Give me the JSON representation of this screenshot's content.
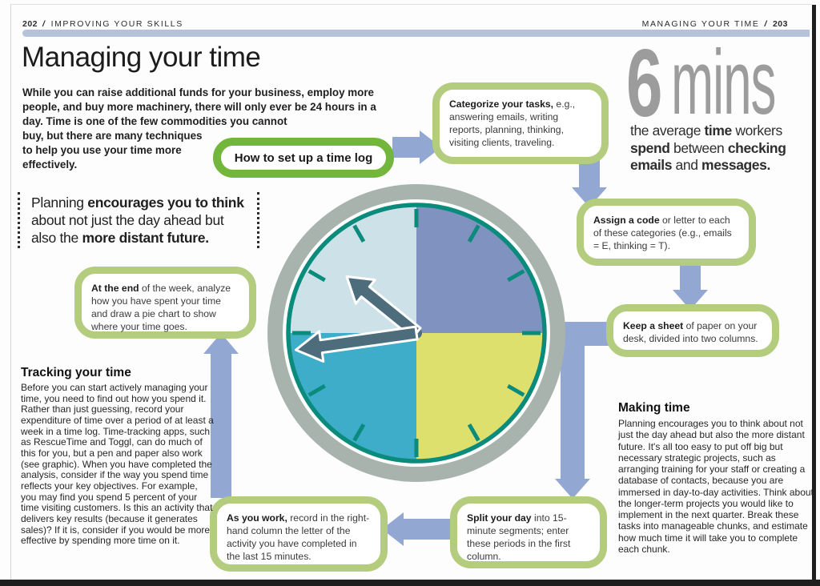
{
  "colors": {
    "accent_bar_blue": "#b5c3da",
    "arrow_blue": "#92a7d2",
    "start_box_green": "#72b73c",
    "callout_box_green": "#b3cc7d",
    "stat_gray": "#9c9c9c"
  },
  "header": {
    "left": {
      "page_num": "202",
      "divider": "/",
      "section": "IMPROVING YOUR SKILLS"
    },
    "right": {
      "section": "MANAGING YOUR TIME",
      "divider": "/",
      "page_num": "203"
    }
  },
  "title": "Managing your time",
  "intro": {
    "wide": "While you can raise additional funds for your business, employ more people, and buy more machinery, there will only ever be 24 hours in a day. Time is one of the few commodities you cannot",
    "narrow": "buy, but there are many techniques to help you use your time more effectively."
  },
  "stat": {
    "value": "6",
    "unit": "mins",
    "caption": [
      {
        "t": "the average "
      },
      {
        "t": "time",
        "b": true
      },
      {
        "t": " workers "
      },
      {
        "t": "spend",
        "b": true
      },
      {
        "t": " between "
      },
      {
        "t": "checking emails",
        "b": true
      },
      {
        "t": " and "
      },
      {
        "t": "messages.",
        "b": true
      }
    ]
  },
  "quote": [
    {
      "t": "Planning "
    },
    {
      "t": "encourages you to think",
      "b": true
    },
    {
      "t": " about not just the day ahead but also the "
    },
    {
      "t": "more distant future.",
      "b": true
    }
  ],
  "flow": {
    "start": "How to set up a time log",
    "steps": {
      "categorize": [
        {
          "t": "Categorize your tasks,",
          "b": true
        },
        {
          "t": " e.g., answering emails, writing reports, planning, thinking, visiting clients, traveling."
        }
      ],
      "assign": [
        {
          "t": "Assign a code",
          "b": true
        },
        {
          "t": " or letter to each of these categories (e.g., emails = E, thinking = T)."
        }
      ],
      "keep": [
        {
          "t": "Keep a sheet",
          "b": true
        },
        {
          "t": " of paper on your desk, divided into two columns."
        }
      ],
      "split": [
        {
          "t": "Split your day",
          "b": true
        },
        {
          "t": " into 15-minute segments; enter these periods in the first column."
        }
      ],
      "as_you_work": [
        {
          "t": "As you work,",
          "b": true
        },
        {
          "t": " record in the right-hand column the letter of the activity you have completed in the last 15 minutes."
        }
      ],
      "week_end": [
        {
          "t": "At the end",
          "b": true
        },
        {
          "t": " of the week, analyze how you have spent your time and draw a pie chart to show where your time goes."
        }
      ]
    }
  },
  "sections": {
    "tracking": {
      "heading": "Tracking your time",
      "body": "Before you can start actively managing your time, you need to find out how you spend it. Rather than just guessing, record your expenditure of time over a period of at least a week in a time log. Time-tracking apps, such as RescueTime and Toggl, can do much of this for you, but a pen and paper also work (see graphic). When you have completed the analysis, consider if the way you spend time reflects your key objectives. For example, you may find you spend 5 percent of your time visiting customers. Is this an activity that delivers key results (because it generates sales)? If it is, consider if you would be more effective by spending more time on it."
    },
    "making": {
      "heading": "Making time",
      "body": "Planning encourages you to think about not just the day ahead but also the more distant future. It's all too easy to put off big but necessary strategic projects, such as arranging training for your staff or creating a database of contacts, because you are immersed in day-to-day activities. Think about the longer-term projects you would like to implement in the next quarter. Break these tasks into manageable chunks, and estimate how much time it will take you to complete each chunk."
    }
  },
  "clock": {
    "bezel_color": "#a7b3ac",
    "face_color": "#ffffff",
    "ring_color": "#0b8b7c",
    "hand_color": "#4d6c7c",
    "quadrants": {
      "top_left": "#cde2e8",
      "top_right": "#8092c0",
      "bottom_right": "#dde06c",
      "bottom_left": "#3dadca"
    }
  }
}
